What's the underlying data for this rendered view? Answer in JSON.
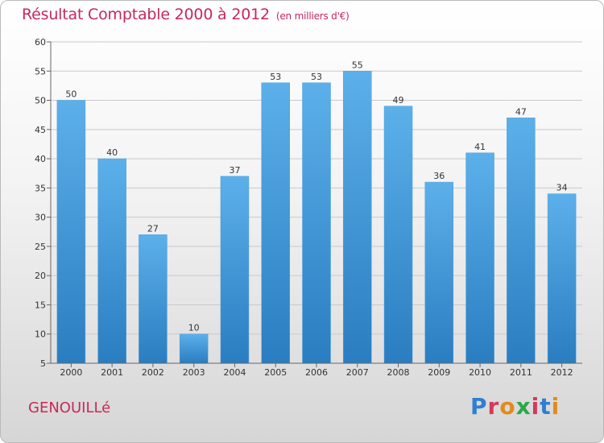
{
  "header": {
    "title": "Résultat Comptable 2000 à 2012",
    "subtitle": "(en milliers d'€)"
  },
  "footer": {
    "commune": "GENOUILLé",
    "brand": "Proxiti"
  },
  "colors": {
    "accent": "#c8285a",
    "bar_top": "#5cb0ea",
    "bar_bottom": "#2a7dc0"
  },
  "chart_data": {
    "type": "bar",
    "title": "Résultat Comptable 2000 à 2012",
    "subtitle": "(en milliers d'€)",
    "xlabel": "",
    "ylabel": "",
    "categories": [
      "2000",
      "2001",
      "2002",
      "2003",
      "2004",
      "2005",
      "2006",
      "2007",
      "2008",
      "2009",
      "2010",
      "2011",
      "2012"
    ],
    "values": [
      50,
      40,
      27,
      10,
      37,
      53,
      53,
      55,
      49,
      36,
      41,
      47,
      34
    ],
    "ylim": [
      5,
      60
    ],
    "yticks": [
      5,
      10,
      15,
      20,
      25,
      30,
      35,
      40,
      45,
      50,
      55,
      60
    ],
    "grid": true,
    "legend": "none"
  }
}
